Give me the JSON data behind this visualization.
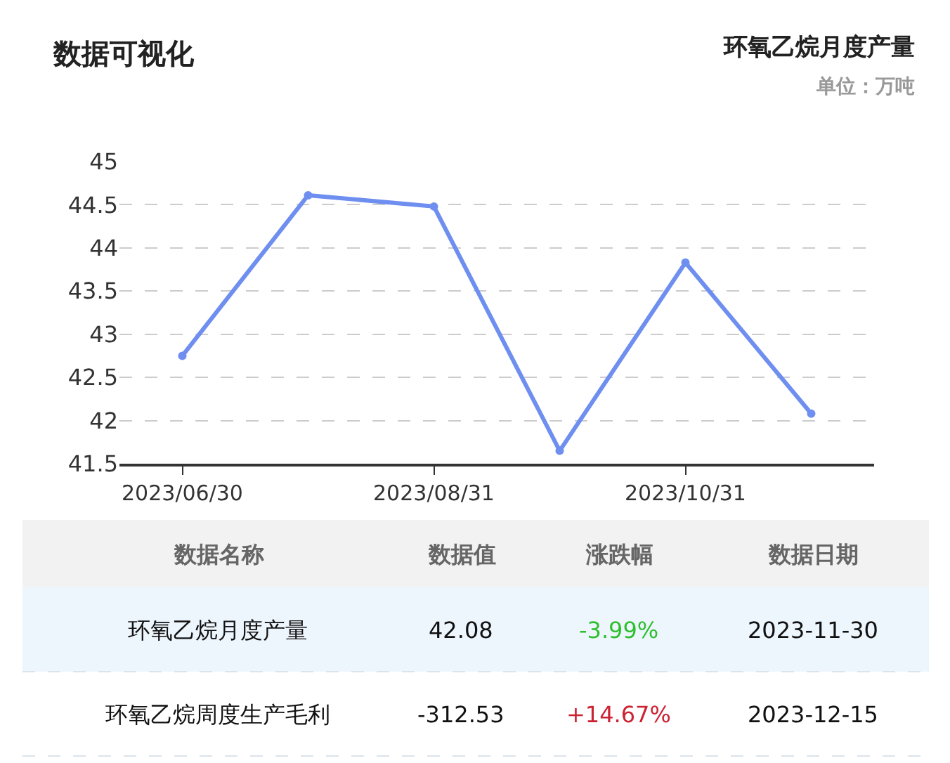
{
  "chart_data": {
    "type": "line",
    "title": "环氧乙烷月度产量",
    "subtitle": "单位：万吨",
    "categories": [
      "2023/06/30",
      null,
      "2023/08/31",
      null,
      "2023/10/31",
      null
    ],
    "series": [
      {
        "color": "#6e8ff0",
        "values": [
          42.75,
          44.61,
          44.48,
          41.65,
          43.83,
          42.08
        ]
      }
    ],
    "ylim": [
      41.5,
      45
    ],
    "yticks": [
      41.5,
      42,
      42.5,
      43,
      43.5,
      44,
      44.5,
      45
    ],
    "grid": "y",
    "marker": "circle",
    "line_style": "solid",
    "annotations": [
      "数据可视化",
      "数据名称",
      "数据值",
      "涨跌幅",
      "数据日期",
      "环氧乙烷月度产量",
      "42.08",
      "-3.99%",
      "2023-11-30",
      "环氧乙烷周度生产毛利",
      "-312.53",
      "+14.67%",
      "2023-12-15"
    ]
  }
}
